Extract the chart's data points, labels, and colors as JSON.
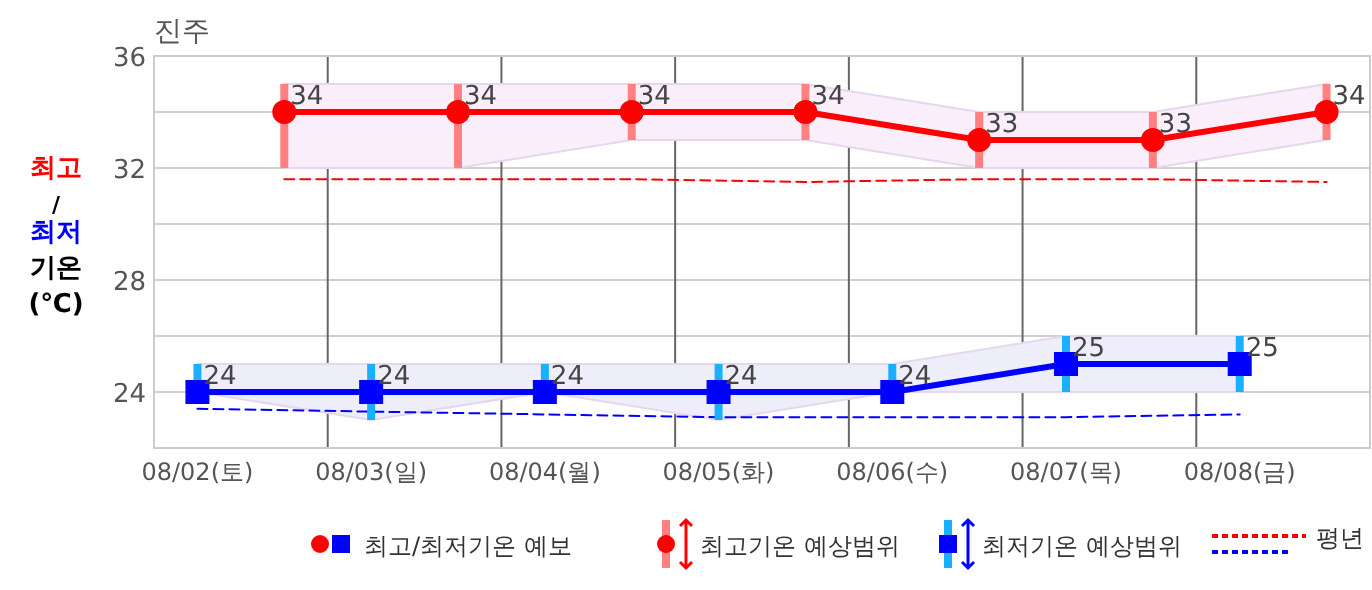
{
  "chart_data": {
    "type": "line",
    "title": "진주",
    "ylabel": "최고/최저 기온 (℃)",
    "categories": [
      "08/02(토)",
      null,
      "08/03(일)",
      null,
      "08/04(월)",
      null,
      "08/05(화)",
      null,
      "08/06(수)",
      null,
      "08/07(목)",
      null,
      "08/08(금)",
      null
    ],
    "ylim": [
      22,
      36
    ],
    "yticks": [
      24,
      {
        "value": 26,
        "label": null
      },
      28,
      {
        "value": 30,
        "label": null
      },
      32,
      {
        "value": 34,
        "label": null
      },
      36
    ],
    "grid": true,
    "legend": "bottom",
    "annotations": [
      "최고기온 예상범위",
      "최저기온 예상범위"
    ],
    "series": [
      {
        "color": "#ff0000",
        "marker": "circle",
        "values": [
          null,
          34,
          null,
          34,
          null,
          34,
          null,
          34,
          null,
          33,
          null,
          33,
          null,
          34
        ],
        "value_labels": [
          null,
          "34",
          null,
          "34",
          null,
          "34",
          null,
          "34",
          null,
          "33",
          null,
          "33",
          null,
          "34"
        ],
        "errors": [
          null,
          [
            32,
            35
          ],
          null,
          [
            32,
            35
          ],
          null,
          [
            33,
            35
          ],
          null,
          [
            33,
            35
          ],
          null,
          [
            32,
            34
          ],
          null,
          [
            32,
            34
          ],
          null,
          [
            33,
            35
          ]
        ],
        "lower": [
          null,
          32,
          null,
          32,
          null,
          33,
          null,
          33,
          null,
          32,
          null,
          32,
          null,
          33
        ],
        "upper": [
          null,
          35,
          null,
          35,
          null,
          35,
          null,
          35,
          null,
          34,
          null,
          34,
          null,
          35
        ]
      },
      {
        "name": "최고/최저기온 예보",
        "color": "#0000ff",
        "marker": "square",
        "values": [
          24,
          null,
          24,
          null,
          24,
          null,
          24,
          null,
          24,
          null,
          25,
          null,
          25,
          null
        ],
        "value_labels": [
          "24",
          null,
          "24",
          null,
          "24",
          null,
          "24",
          null,
          "24",
          null,
          "25",
          null,
          "25",
          null
        ],
        "errors": [
          [
            24,
            25
          ],
          null,
          [
            23,
            25
          ],
          null,
          [
            24,
            25
          ],
          null,
          [
            23,
            25
          ],
          null,
          [
            24,
            25
          ],
          null,
          [
            24,
            26
          ],
          null,
          [
            24,
            26
          ],
          null
        ],
        "lower": [
          24,
          null,
          23,
          null,
          24,
          null,
          23,
          null,
          24,
          null,
          24,
          null,
          24,
          null
        ],
        "upper": [
          25,
          null,
          25,
          null,
          25,
          null,
          25,
          null,
          25,
          null,
          26,
          null,
          26,
          null
        ]
      },
      {
        "name": "평년",
        "color": "#ff0000",
        "line_style": "dashed",
        "marker": "none",
        "values": [
          null,
          31.6,
          null,
          31.6,
          null,
          31.6,
          null,
          31.5,
          null,
          31.6,
          null,
          31.6,
          null,
          31.5
        ]
      },
      {
        "color": "#0000ff",
        "line_style": "dashed",
        "marker": "none",
        "values": [
          23.4,
          null,
          23.3,
          null,
          23.2,
          null,
          23.1,
          null,
          23.1,
          null,
          23.1,
          null,
          23.2,
          null
        ]
      }
    ]
  }
}
